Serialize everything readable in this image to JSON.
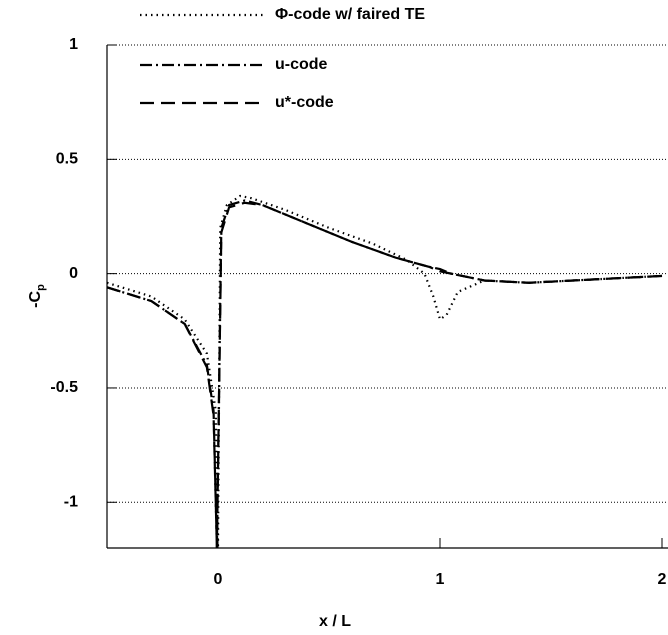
{
  "chart_data": {
    "type": "line",
    "xlabel": "x / L",
    "ylabel": "-C",
    "ylabel_sub": "p",
    "xlim": [
      -0.5,
      2.0
    ],
    "ylim": [
      -1.2,
      1
    ],
    "xticks": [
      0,
      1,
      2
    ],
    "yticks": [
      -1,
      -0.5,
      0,
      0.5,
      1
    ],
    "grid": true,
    "legend": "top",
    "series": [
      {
        "name": "Φ-code w/ faired TE",
        "color": "#000000",
        "style": "dotted",
        "x": [
          -0.5,
          -0.3,
          -0.15,
          -0.05,
          -0.01,
          0.0,
          0.01,
          0.04,
          0.1,
          0.15,
          0.3,
          0.5,
          0.7,
          0.85,
          0.93,
          0.97,
          1.0,
          1.03,
          1.08,
          1.2,
          1.4,
          1.6,
          1.8,
          2.0
        ],
        "values": [
          -0.04,
          -0.1,
          -0.2,
          -0.35,
          -0.6,
          -1.2,
          0.2,
          0.3,
          0.34,
          0.33,
          0.28,
          0.2,
          0.13,
          0.06,
          0.0,
          -0.1,
          -0.2,
          -0.18,
          -0.08,
          -0.03,
          -0.04,
          -0.03,
          -0.02,
          -0.01
        ]
      },
      {
        "name": "u-code",
        "color": "#000000",
        "style": "dashdot",
        "x": [
          -0.5,
          -0.3,
          -0.15,
          -0.05,
          -0.02,
          -0.005,
          0.015,
          0.05,
          0.12,
          0.2,
          0.4,
          0.6,
          0.8,
          0.95,
          1.0,
          1.05,
          1.2,
          1.4,
          1.6,
          1.8,
          2.0
        ],
        "values": [
          -0.06,
          -0.12,
          -0.22,
          -0.4,
          -0.6,
          -1.2,
          0.2,
          0.3,
          0.32,
          0.3,
          0.22,
          0.14,
          0.07,
          0.03,
          0.02,
          0.0,
          -0.03,
          -0.04,
          -0.03,
          -0.02,
          -0.01
        ]
      },
      {
        "name": "u*-code",
        "color": "#000000",
        "style": "dashed",
        "x": [
          -0.5,
          -0.3,
          -0.15,
          -0.05,
          -0.02,
          -0.005,
          0.015,
          0.05,
          0.12,
          0.2,
          0.4,
          0.6,
          0.8,
          0.95,
          1.0,
          1.05,
          1.2,
          1.4,
          1.6,
          1.8,
          2.0
        ],
        "values": [
          -0.06,
          -0.12,
          -0.22,
          -0.41,
          -0.62,
          -1.2,
          0.18,
          0.29,
          0.31,
          0.3,
          0.22,
          0.14,
          0.07,
          0.03,
          0.01,
          0.0,
          -0.03,
          -0.04,
          -0.03,
          -0.02,
          -0.01
        ]
      }
    ]
  }
}
